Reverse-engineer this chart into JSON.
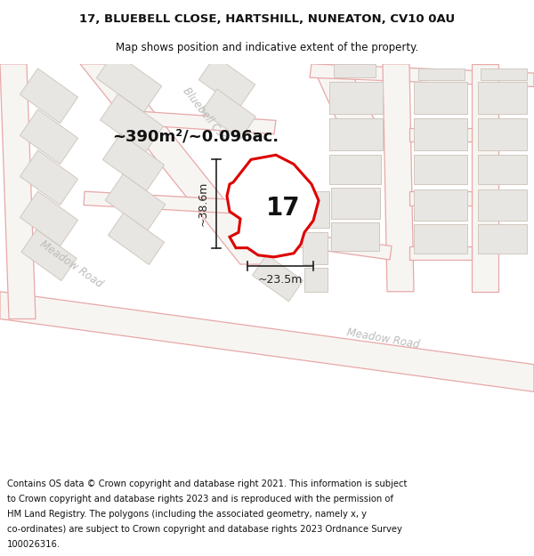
{
  "title_line1": "17, BLUEBELL CLOSE, HARTSHILL, NUNEATON, CV10 0AU",
  "title_line2": "Map shows position and indicative extent of the property.",
  "area_text": "~390m²/~0.096ac.",
  "width_label": "~23.5m",
  "height_label": "~38.6m",
  "number_label": "17",
  "footer_text": "Contains OS data © Crown copyright and database right 2021. This information is subject to Crown copyright and database rights 2023 and is reproduced with the permission of HM Land Registry. The polygons (including the associated geometry, namely x, y co-ordinates) are subject to Crown copyright and database rights 2023 Ordnance Survey 100026316.",
  "map_bg": "#f7f5f2",
  "road_line_color": "#e8a8a8",
  "road_fill": "#f7f5f2",
  "block_fill": "#e8e6e2",
  "block_edge": "#d0c8c0",
  "prop_color": "#dd0000",
  "prop_fill": "#ffffff",
  "dim_color": "#222222",
  "street_color": "#bbbbbb",
  "text_color": "#111111",
  "title_fs": 9.5,
  "sub_fs": 8.5,
  "footer_fs": 7.2,
  "area_fs": 13,
  "num_fs": 20,
  "dim_fs": 9,
  "st_fs": 8.5
}
